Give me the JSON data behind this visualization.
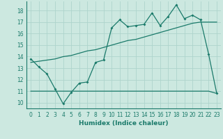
{
  "xlabel": "Humidex (Indice chaleur)",
  "bg_color": "#cce8e0",
  "grid_color": "#aed4cc",
  "line_color": "#1a7a6a",
  "x_values": [
    0,
    1,
    2,
    3,
    4,
    5,
    6,
    7,
    8,
    9,
    10,
    11,
    12,
    13,
    14,
    15,
    16,
    17,
    18,
    19,
    20,
    21,
    22,
    23
  ],
  "line1_y": [
    13.8,
    13.1,
    12.5,
    11.2,
    9.9,
    10.9,
    11.7,
    11.8,
    13.5,
    13.7,
    16.5,
    17.2,
    16.6,
    16.7,
    16.8,
    17.8,
    16.7,
    17.5,
    18.5,
    17.3,
    17.6,
    17.2,
    14.2,
    10.8
  ],
  "line2_y": [
    11.0,
    11.0,
    11.0,
    11.0,
    11.0,
    11.0,
    11.0,
    11.0,
    11.0,
    11.0,
    11.0,
    11.0,
    11.0,
    11.0,
    11.0,
    11.0,
    11.0,
    11.0,
    11.0,
    11.0,
    11.0,
    11.0,
    11.0,
    10.8
  ],
  "line3_y": [
    13.5,
    13.6,
    13.7,
    13.8,
    14.0,
    14.1,
    14.3,
    14.5,
    14.6,
    14.8,
    15.0,
    15.2,
    15.4,
    15.5,
    15.7,
    15.9,
    16.1,
    16.3,
    16.5,
    16.7,
    16.9,
    17.0,
    17.0,
    17.0
  ],
  "ylim": [
    9.5,
    18.8
  ],
  "yticks": [
    10,
    11,
    12,
    13,
    14,
    15,
    16,
    17,
    18
  ],
  "xlabel_fontsize": 6.5,
  "tick_fontsize": 5.5
}
